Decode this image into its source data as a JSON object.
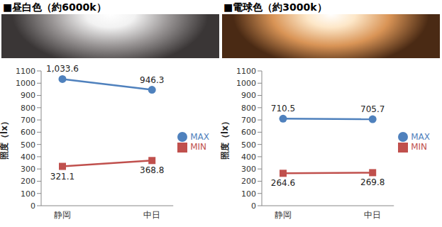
{
  "chart_data": [
    {
      "type": "line",
      "title": "■昼白色（約6000k）",
      "categories": [
        "静岡",
        "中日"
      ],
      "series": [
        {
          "name": "MAX",
          "color": "#4f81bd",
          "marker": "circle",
          "values": [
            1033.6,
            946.3
          ],
          "value_labels": [
            "1,033.6",
            "946.3"
          ]
        },
        {
          "name": "MIN",
          "color": "#c0504d",
          "marker": "square",
          "values": [
            321.1,
            368.8
          ]
        }
      ],
      "y_label": "照度（lx）",
      "ylim": [
        0,
        1100
      ],
      "yticks": [
        0,
        100,
        200,
        300,
        400,
        500,
        600,
        700,
        800,
        900,
        1000,
        1100
      ],
      "grid": false,
      "legend": "right",
      "data_labels": true
    },
    {
      "type": "line",
      "title": "■電球色（約3000k）",
      "categories": [
        "静岡",
        "中日"
      ],
      "series": [
        {
          "name": "MAX",
          "color": "#4f81bd",
          "marker": "circle",
          "values": [
            710.5,
            705.7
          ]
        },
        {
          "name": "MIN",
          "color": "#c0504d",
          "marker": "square",
          "values": [
            264.6,
            269.8
          ]
        }
      ],
      "y_label": "照度（lx）",
      "ylim": [
        0,
        1100
      ],
      "yticks": [
        0,
        100,
        200,
        300,
        400,
        500,
        600,
        700,
        800,
        900,
        1000,
        1100
      ],
      "grid": false,
      "legend": "right",
      "data_labels": true
    }
  ]
}
